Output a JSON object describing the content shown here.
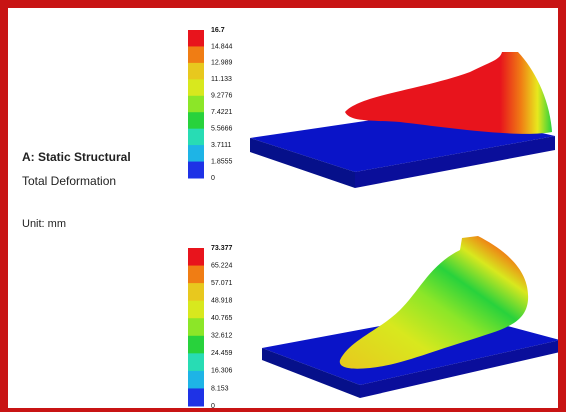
{
  "header": {
    "title": "A: Static Structural",
    "subtitle": "Total Deformation",
    "unit": "Unit: mm"
  },
  "legends": [
    {
      "labels": [
        "16.7",
        "14.844",
        "12.989",
        "11.133",
        "9.2776",
        "7.4221",
        "5.5666",
        "3.7111",
        "1.8555",
        "0"
      ]
    },
    {
      "labels": [
        "73.377",
        "65.224",
        "57.071",
        "48.918",
        "40.765",
        "32.612",
        "24.459",
        "16.306",
        "8.153",
        "0"
      ]
    }
  ]
}
